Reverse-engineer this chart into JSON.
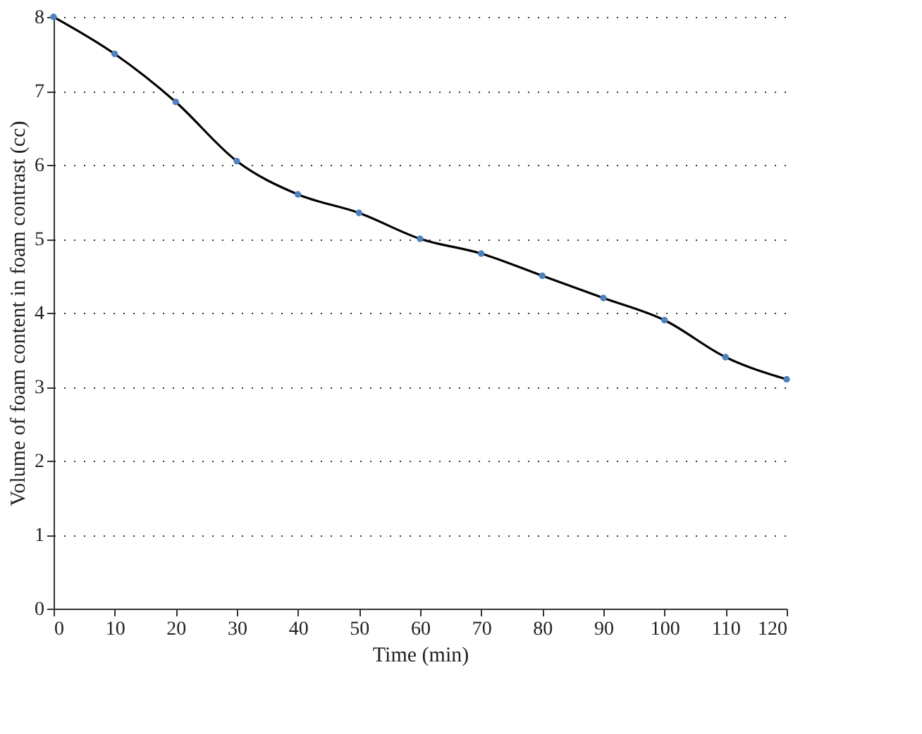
{
  "chart_data": {
    "type": "line",
    "xlabel": "Time (min)",
    "ylabel": "Volume of foam content in foam contrast (cc)",
    "x": [
      0,
      10,
      20,
      30,
      40,
      50,
      60,
      70,
      80,
      90,
      100,
      110,
      120
    ],
    "series": [
      {
        "color": "#4f81bd",
        "values": [
          8,
          7.5,
          6.85,
          6.05,
          5.6,
          5.35,
          5.0,
          4.8,
          4.5,
          4.2,
          3.9,
          3.4,
          3.1
        ]
      }
    ],
    "xlim": [
      0,
      120
    ],
    "xticks": [
      0,
      10,
      20,
      30,
      40,
      50,
      60,
      70,
      80,
      90,
      100,
      110,
      120
    ],
    "ylim": [
      0,
      8
    ],
    "yticks": [
      0,
      1,
      2,
      3,
      4,
      5,
      6,
      7,
      8
    ],
    "grid": "y",
    "marker": "circle",
    "line_style": "solid"
  }
}
